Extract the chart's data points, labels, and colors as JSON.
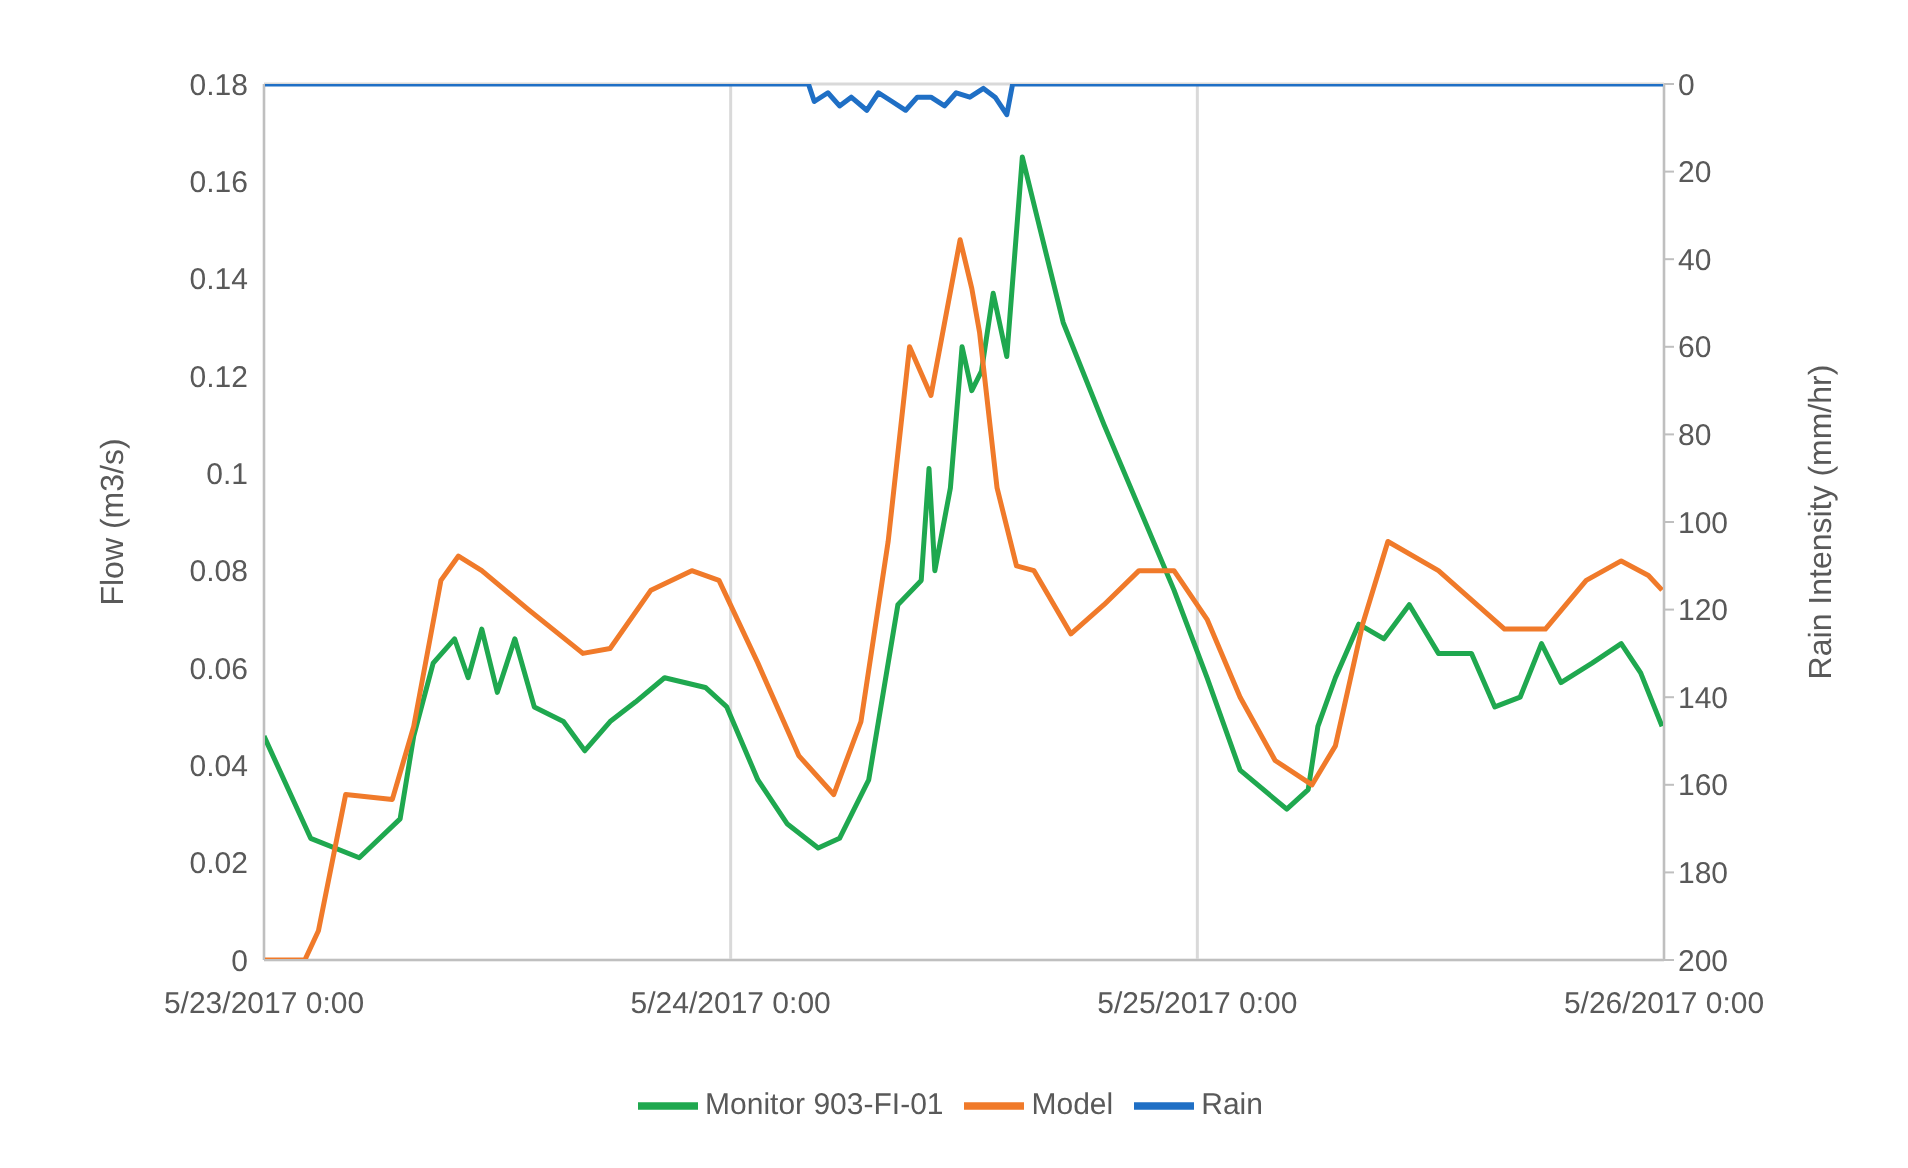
{
  "chart_data": {
    "type": "line",
    "ylabel": "Flow (m3/s)",
    "y2label": "Rain Intensity (mm/hr)",
    "xlim": [
      "2017-05-23T00:00",
      "2017-05-26T00:00"
    ],
    "xticks": [
      {
        "value": "2017-05-23T00:00",
        "label": "5/23/2017 0:00"
      },
      {
        "value": "2017-05-24T00:00",
        "label": "5/24/2017 0:00"
      },
      {
        "value": "2017-05-25T00:00",
        "label": "5/25/2017 0:00"
      },
      {
        "value": "2017-05-26T00:00",
        "label": "5/26/2017 0:00"
      }
    ],
    "ylim": [
      0,
      0.18
    ],
    "yticks": [
      0,
      0.02,
      0.04,
      0.06,
      0.08,
      0.1,
      0.12,
      0.14,
      0.16,
      0.18
    ],
    "y2lim": [
      200,
      0
    ],
    "y2ticks": [
      0,
      20,
      40,
      60,
      80,
      100,
      120,
      140,
      160,
      180,
      200
    ],
    "grid": true,
    "legend": "bottom",
    "marker": "none",
    "line_style": "solid",
    "series": [
      {
        "name": "Monitor 903-FI-01",
        "color": "#1fa84f",
        "x": [
          "2017-05-23T00:00",
          "2017-05-23T02:24",
          "2017-05-23T04:54",
          "2017-05-23T07:00",
          "2017-05-23T07:42",
          "2017-05-23T08:42",
          "2017-05-23T09:48",
          "2017-05-23T10:30",
          "2017-05-23T11:12",
          "2017-05-23T12:00",
          "2017-05-23T12:54",
          "2017-05-23T13:54",
          "2017-05-23T15:24",
          "2017-05-23T16:30",
          "2017-05-23T17:48",
          "2017-05-23T19:06",
          "2017-05-23T20:36",
          "2017-05-23T22:42",
          "2017-05-23T23:48",
          "2017-05-24T01:24",
          "2017-05-24T02:54",
          "2017-05-24T04:30",
          "2017-05-24T05:36",
          "2017-05-24T07:06",
          "2017-05-24T08:36",
          "2017-05-24T09:48",
          "2017-05-24T10:12",
          "2017-05-24T10:30",
          "2017-05-24T11:18",
          "2017-05-24T11:54",
          "2017-05-24T12:24",
          "2017-05-24T12:54",
          "2017-05-24T13:30",
          "2017-05-24T14:12",
          "2017-05-24T15:00",
          "2017-05-24T15:48",
          "2017-05-24T17:06",
          "2017-05-24T19:12",
          "2017-05-24T21:00",
          "2017-05-24T22:48",
          "2017-05-25T00:30",
          "2017-05-25T02:12",
          "2017-05-25T04:36",
          "2017-05-25T05:42",
          "2017-05-25T06:12",
          "2017-05-25T07:06",
          "2017-05-25T08:18",
          "2017-05-25T09:36",
          "2017-05-25T10:54",
          "2017-05-25T12:24",
          "2017-05-25T14:06",
          "2017-05-25T15:18",
          "2017-05-25T16:36",
          "2017-05-25T17:42",
          "2017-05-25T18:42",
          "2017-05-25T20:18",
          "2017-05-25T21:48",
          "2017-05-25T22:48",
          "2017-05-25T23:54"
        ],
        "values": [
          0.046,
          0.025,
          0.021,
          0.029,
          0.046,
          0.061,
          0.066,
          0.058,
          0.068,
          0.055,
          0.066,
          0.052,
          0.049,
          0.043,
          0.049,
          0.053,
          0.058,
          0.056,
          0.052,
          0.037,
          0.028,
          0.023,
          0.025,
          0.037,
          0.073,
          0.078,
          0.101,
          0.08,
          0.097,
          0.126,
          0.117,
          0.121,
          0.137,
          0.124,
          0.165,
          0.152,
          0.131,
          0.11,
          0.093,
          0.076,
          0.058,
          0.039,
          0.031,
          0.035,
          0.048,
          0.058,
          0.069,
          0.066,
          0.073,
          0.063,
          0.063,
          0.052,
          0.054,
          0.065,
          0.057,
          0.061,
          0.065,
          0.059,
          0.048
        ]
      },
      {
        "name": "Model",
        "color": "#f07a2a",
        "x": [
          "2017-05-23T00:00",
          "2017-05-23T02:06",
          "2017-05-23T02:48",
          "2017-05-23T04:12",
          "2017-05-23T06:36",
          "2017-05-23T07:42",
          "2017-05-23T09:06",
          "2017-05-23T10:00",
          "2017-05-23T11:12",
          "2017-05-23T13:36",
          "2017-05-23T16:24",
          "2017-05-23T17:48",
          "2017-05-23T19:54",
          "2017-05-23T22:00",
          "2017-05-23T23:24",
          "2017-05-24T01:24",
          "2017-05-24T03:30",
          "2017-05-24T05:18",
          "2017-05-24T06:42",
          "2017-05-24T08:06",
          "2017-05-24T09:12",
          "2017-05-24T10:18",
          "2017-05-24T11:48",
          "2017-05-24T12:24",
          "2017-05-24T12:48",
          "2017-05-24T13:42",
          "2017-05-24T14:42",
          "2017-05-24T15:36",
          "2017-05-24T17:30",
          "2017-05-24T19:12",
          "2017-05-24T21:00",
          "2017-05-24T22:48",
          "2017-05-25T00:30",
          "2017-05-25T02:12",
          "2017-05-25T04:00",
          "2017-05-25T05:54",
          "2017-05-25T07:06",
          "2017-05-25T08:30",
          "2017-05-25T09:48",
          "2017-05-25T12:24",
          "2017-05-25T15:48",
          "2017-05-25T17:54",
          "2017-05-25T20:00",
          "2017-05-25T21:48",
          "2017-05-25T23:12",
          "2017-05-25T23:54"
        ],
        "values": [
          0,
          0,
          0.006,
          0.034,
          0.033,
          0.048,
          0.078,
          0.083,
          0.08,
          0.072,
          0.063,
          0.064,
          0.076,
          0.08,
          0.078,
          0.061,
          0.042,
          0.034,
          0.049,
          0.086,
          0.126,
          0.116,
          0.148,
          0.138,
          0.129,
          0.097,
          0.081,
          0.08,
          0.067,
          0.073,
          0.08,
          0.08,
          0.07,
          0.054,
          0.041,
          0.036,
          0.044,
          0.069,
          0.086,
          0.08,
          0.068,
          0.068,
          0.078,
          0.082,
          0.079,
          0.076
        ]
      },
      {
        "name": "Rain",
        "color": "#1f6fc5",
        "axis": "y2",
        "x": [
          "2017-05-23T00:00",
          "2017-05-24T04:00",
          "2017-05-24T04:18",
          "2017-05-24T05:00",
          "2017-05-24T05:36",
          "2017-05-24T06:12",
          "2017-05-24T07:00",
          "2017-05-24T07:36",
          "2017-05-24T08:18",
          "2017-05-24T09:00",
          "2017-05-24T09:36",
          "2017-05-24T10:18",
          "2017-05-24T11:00",
          "2017-05-24T11:36",
          "2017-05-24T12:18",
          "2017-05-24T13:00",
          "2017-05-24T13:36",
          "2017-05-24T14:12",
          "2017-05-24T14:30",
          "2017-05-26T00:00"
        ],
        "values": [
          0,
          0,
          4,
          2,
          5,
          3,
          6,
          2,
          4,
          6,
          3,
          3,
          5,
          2,
          3,
          1,
          3,
          7,
          0,
          0
        ]
      }
    ]
  }
}
